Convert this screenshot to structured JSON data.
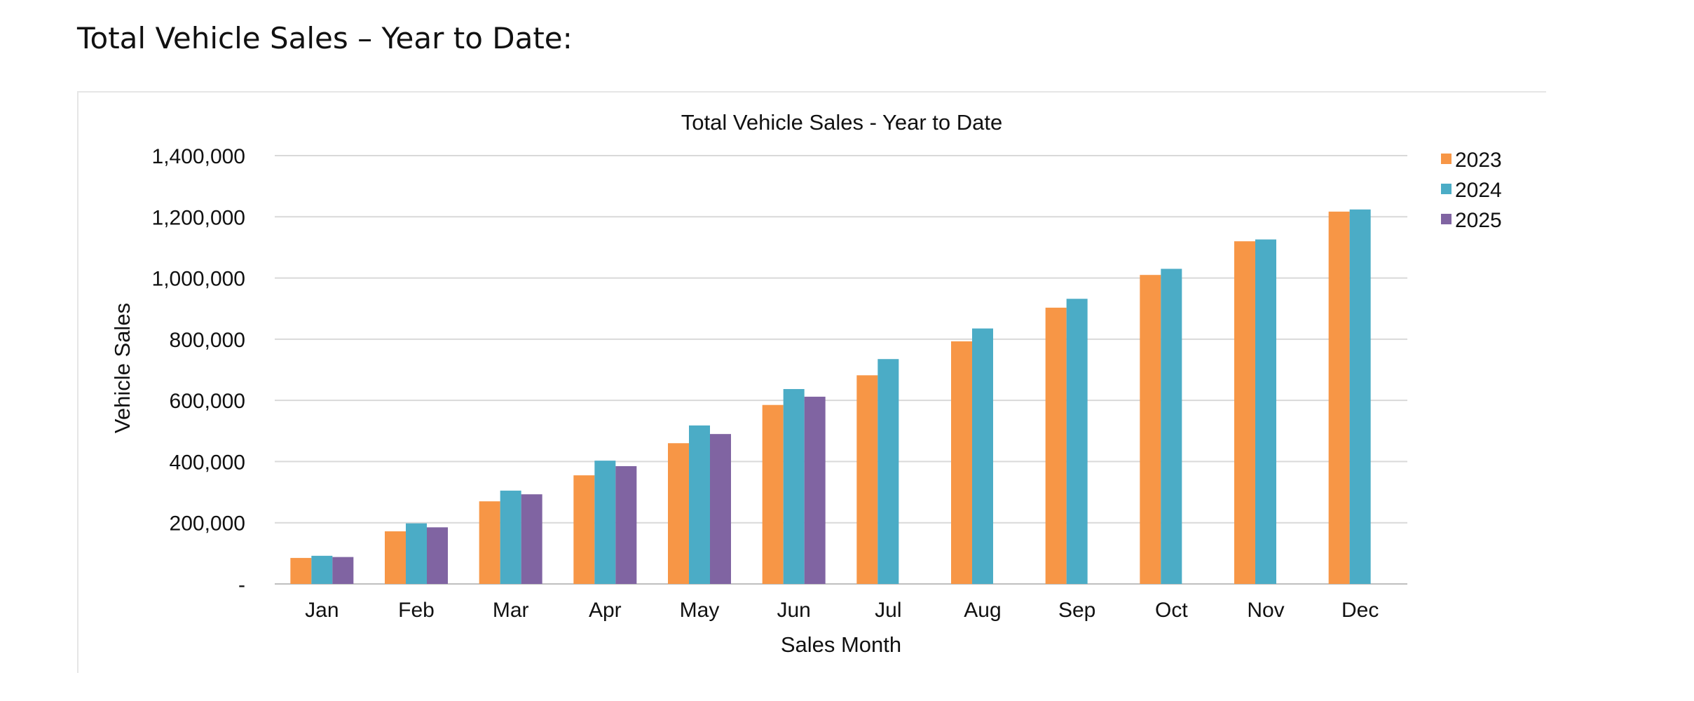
{
  "page": {
    "heading": "Total Vehicle Sales – Year to Date:"
  },
  "chart_data": {
    "type": "bar",
    "title": "Total Vehicle Sales - Year to Date",
    "xlabel": "Sales Month",
    "ylabel": "Vehicle Sales",
    "categories": [
      "Jan",
      "Feb",
      "Mar",
      "Apr",
      "May",
      "Jun",
      "Jul",
      "Aug",
      "Sep",
      "Oct",
      "Nov",
      "Dec"
    ],
    "ylim": [
      0,
      1400000
    ],
    "yticks": [
      0,
      200000,
      400000,
      600000,
      800000,
      1000000,
      1200000,
      1400000
    ],
    "ytick_labels": [
      "-",
      "200,000",
      "400,000",
      "600,000",
      "800,000",
      "1,000,000",
      "1,200,000",
      "1,400,000"
    ],
    "grid": true,
    "legend_position": "right",
    "series": [
      {
        "name": "2023",
        "color": "#f79646",
        "values": [
          85000,
          172000,
          270000,
          355000,
          460000,
          585000,
          682000,
          793000,
          903000,
          1010000,
          1120000,
          1217000
        ]
      },
      {
        "name": "2024",
        "color": "#4bacc6",
        "values": [
          92000,
          198000,
          305000,
          403000,
          518000,
          637000,
          735000,
          835000,
          932000,
          1030000,
          1126000,
          1224000
        ]
      },
      {
        "name": "2025",
        "color": "#8064a2",
        "values": [
          88000,
          185000,
          293000,
          385000,
          490000,
          612000,
          null,
          null,
          null,
          null,
          null,
          null
        ]
      }
    ]
  }
}
